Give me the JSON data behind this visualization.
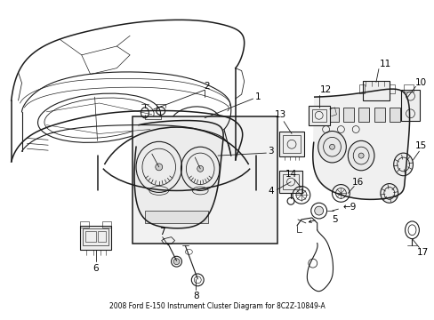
{
  "title": "2008 Ford E-150 Instrument Cluster Diagram for 8C2Z-10849-A",
  "bg_color": "#ffffff",
  "line_color": "#1a1a1a",
  "fig_width": 4.89,
  "fig_height": 3.6,
  "dpi": 100
}
